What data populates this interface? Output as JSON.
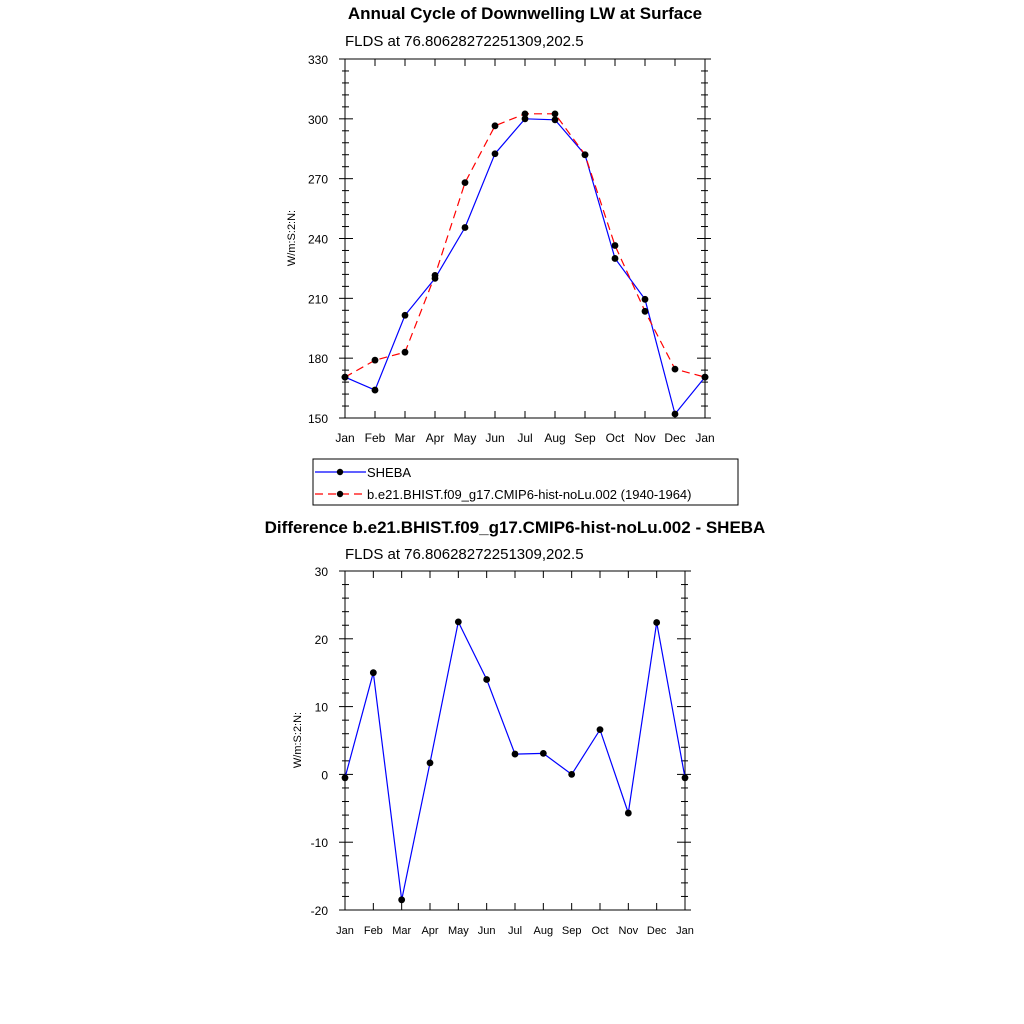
{
  "chart_data": [
    {
      "type": "line",
      "title": "Annual Cycle of Downwelling LW at Surface",
      "subtitle": "FLDS at 76.80628272251309,202.5",
      "ylabel": "W/m:S:2:N:",
      "xlabel": "",
      "categories": [
        "Jan",
        "Feb",
        "Mar",
        "Apr",
        "May",
        "Jun",
        "Jul",
        "Aug",
        "Sep",
        "Oct",
        "Nov",
        "Dec",
        "Jan"
      ],
      "ylim": [
        150,
        330
      ],
      "yticks": [
        150,
        180,
        210,
        240,
        270,
        300,
        330
      ],
      "grid": false,
      "legend": "bottom",
      "series": [
        {
          "name": "SHEBA",
          "color": "#0000ff",
          "dash": "solid",
          "values": [
            170.5,
            164,
            201.5,
            220,
            245.5,
            282.5,
            300,
            299.5,
            282,
            230,
            209.5,
            152,
            170.5
          ]
        },
        {
          "name": "b.e21.BHIST.f09_g17.CMIP6-hist-noLu.002 (1940-1964)",
          "color": "#ff0000",
          "dash": "dashed",
          "values": [
            170.5,
            179,
            183,
            221.5,
            268,
            296.5,
            302.5,
            302.5,
            282,
            236.5,
            203.5,
            174.5,
            170.5
          ]
        }
      ]
    },
    {
      "type": "line",
      "title": "Difference b.e21.BHIST.f09_g17.CMIP6-hist-noLu.002 - SHEBA",
      "subtitle": "FLDS at 76.80628272251309,202.5",
      "ylabel": "W/m:S:2:N:",
      "xlabel": "",
      "categories": [
        "Jan",
        "Feb",
        "Mar",
        "Apr",
        "May",
        "Jun",
        "Jul",
        "Aug",
        "Sep",
        "Oct",
        "Nov",
        "Dec",
        "Jan"
      ],
      "ylim": [
        -20,
        30
      ],
      "yticks": [
        -20,
        -10,
        0,
        10,
        20,
        30
      ],
      "grid": false,
      "series": [
        {
          "color": "#0000ff",
          "dash": "solid",
          "values": [
            -0.5,
            15,
            -18.5,
            1.7,
            22.5,
            14,
            3,
            3.1,
            0,
            6.6,
            -5.7,
            22.4,
            -0.5
          ]
        }
      ]
    }
  ]
}
